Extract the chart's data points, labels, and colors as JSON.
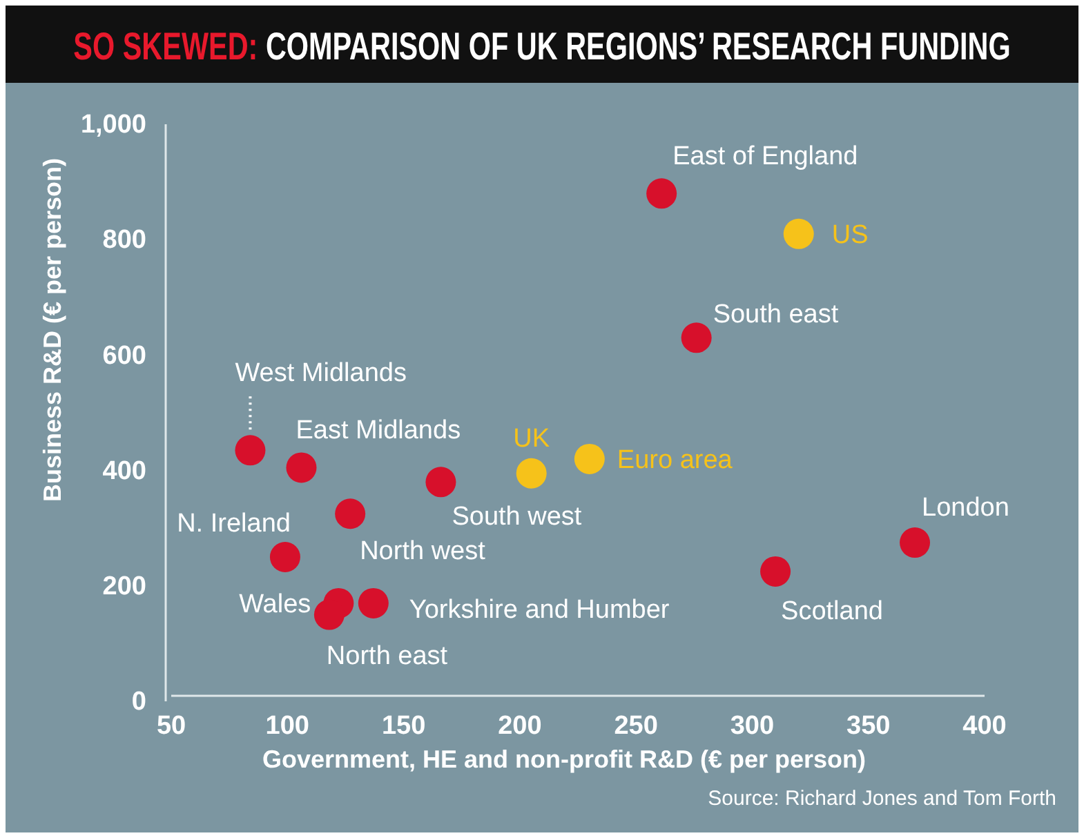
{
  "chart_data": {
    "type": "scatter",
    "title": "SO SKEWED: COMPARISON OF UK REGIONS’ RESEARCH FUNDING",
    "xlabel": "Government, HE and non-profit R&D (€ per person)",
    "ylabel": "Business R&D (€ per person)",
    "x": [
      261,
      276,
      84,
      106,
      166,
      127,
      99,
      122,
      118,
      137,
      310,
      370
    ],
    "series": [
      {
        "color": "#d7102b",
        "values": [
          880,
          630,
          435,
          405,
          380,
          325,
          250,
          170,
          150,
          170,
          225,
          275
        ]
      },
      {
        "color": "#f6c21a",
        "x": [
          320,
          205,
          230
        ],
        "values": [
          810,
          395,
          420
        ]
      }
    ],
    "xlim": [
      50,
      400
    ],
    "xticks": [
      50,
      100,
      150,
      200,
      250,
      300,
      350,
      400
    ],
    "ylim": [
      0,
      1000
    ],
    "yticks": [
      0,
      200,
      400,
      600,
      800,
      {
        "value": 1000,
        "label": "1,000"
      }
    ],
    "marker": "circle",
    "grid": false,
    "annotations": [
      {
        "text": "East of England",
        "x": 261,
        "y": 880
      },
      {
        "text": "South east",
        "x": 276,
        "y": 630
      },
      {
        "text": "West Midlands",
        "x": 84,
        "y": 435
      },
      {
        "text": "East Midlands",
        "x": 106,
        "y": 405
      },
      {
        "text": "South west",
        "x": 166,
        "y": 380
      },
      {
        "text": "North west",
        "x": 127,
        "y": 325
      },
      {
        "text": "N. Ireland",
        "x": 99,
        "y": 250
      },
      {
        "text": "Wales",
        "x": 122,
        "y": 170
      },
      {
        "text": "North east",
        "x": 118,
        "y": 150
      },
      {
        "text": "Yorkshire and Humber",
        "x": 137,
        "y": 170
      },
      {
        "text": "Scotland",
        "x": 310,
        "y": 225
      },
      {
        "text": "London",
        "x": 370,
        "y": 275
      },
      {
        "text": "US",
        "x": 320,
        "y": 810
      },
      {
        "text": "UK",
        "x": 205,
        "y": 395
      },
      {
        "text": "Euro area",
        "x": 230,
        "y": 420
      },
      "Source: Richard Jones and Tom Forth"
    ]
  }
}
